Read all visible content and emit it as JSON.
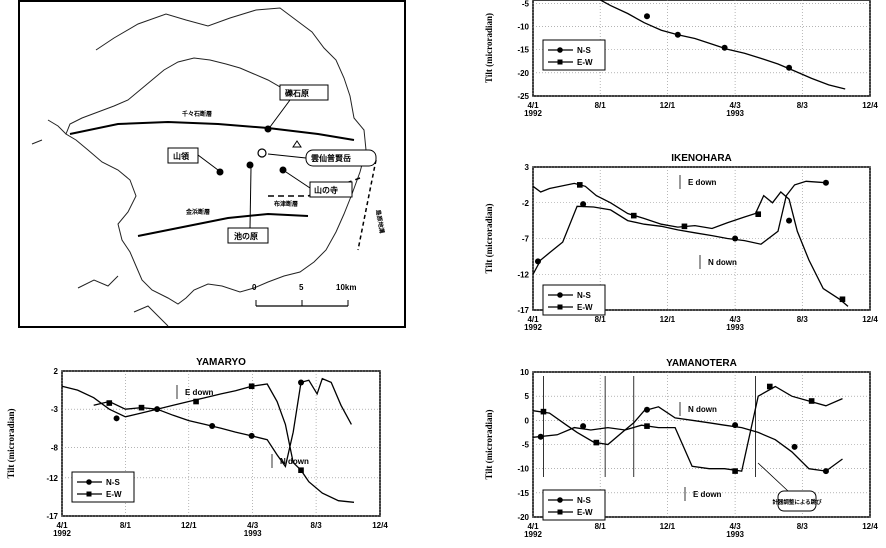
{
  "map": {
    "labels": [
      "礫石原",
      "千々石断層",
      "山領",
      "雲仙普賢岳",
      "山の寺",
      "布津断層",
      "金浜断層",
      "池の原",
      "島原地溝"
    ],
    "scale": {
      "ticks": [
        "0",
        "5",
        "10km"
      ]
    }
  },
  "chart_data": [
    {
      "id": "top",
      "type": "line",
      "title": "",
      "ylabel": "Tilt (microradian)",
      "xlabel": "",
      "x_ticks": [
        "4/1\n1992",
        "8/1",
        "12/1",
        "4/3\n1993",
        "8/3",
        "12/4"
      ],
      "y_ticks": [
        "-5",
        "-10",
        "-15",
        "-20",
        "-25"
      ],
      "ylim": [
        -25,
        -3
      ],
      "legend": [
        "N-S",
        "E-W"
      ],
      "series": [
        {
          "name": "N-S",
          "values": [
            [
              "1992-07-20",
              -3.5
            ],
            [
              "1992-08-20",
              -5.5
            ],
            [
              "1992-09-20",
              -7.2
            ],
            [
              "1992-10-20",
              -9.2
            ],
            [
              "1992-11-20",
              -10.8
            ],
            [
              "1992-12-20",
              -11.8
            ],
            [
              "1993-01-20",
              -12.6
            ],
            [
              "1993-02-20",
              -13.8
            ],
            [
              "1993-03-20",
              -14.9
            ],
            [
              "1993-04-20",
              -15.8
            ],
            [
              "1993-05-20",
              -16.9
            ],
            [
              "1993-06-20",
              -18.1
            ],
            [
              "1993-07-20",
              -19.6
            ],
            [
              "1993-08-20",
              -21.2
            ],
            [
              "1993-09-20",
              -22.6
            ],
            [
              "1993-10-20",
              -23.5
            ]
          ],
          "markers": [
            [
              "1992-10-25",
              -7.8
            ],
            [
              "1992-12-20",
              -11.8
            ],
            [
              "1993-03-15",
              -14.6
            ],
            [
              "1993-07-10",
              -18.9
            ]
          ]
        }
      ]
    },
    {
      "id": "ikenohara",
      "type": "line",
      "title": "IKENOHARA",
      "ylabel": "Tilt (microradian)",
      "xlabel": "",
      "x_ticks": [
        "4/1\n1992",
        "8/1",
        "12/1",
        "4/3\n1993",
        "8/3",
        "12/4"
      ],
      "y_ticks": [
        "3",
        "-2",
        "-7",
        "-12",
        "-17"
      ],
      "ylim": [
        -17,
        3
      ],
      "legend": [
        "N-S",
        "E-W"
      ],
      "annotations": [
        "E down",
        "N down"
      ],
      "series": [
        {
          "name": "N-S",
          "values": [
            [
              "1992-04-01",
              -12.0
            ],
            [
              "1992-04-15",
              -10.0
            ],
            [
              "1992-05-01",
              -9.0
            ],
            [
              "1992-05-25",
              -7.5
            ],
            [
              "1992-06-20",
              -2.5
            ],
            [
              "1992-07-20",
              -2.6
            ],
            [
              "1992-08-20",
              -3.0
            ],
            [
              "1992-09-20",
              -4.5
            ],
            [
              "1992-10-20",
              -5.0
            ],
            [
              "1992-11-20",
              -5.3
            ],
            [
              "1992-12-20",
              -5.8
            ],
            [
              "1993-01-20",
              -6.2
            ],
            [
              "1993-02-20",
              -6.6
            ],
            [
              "1993-03-20",
              -7.0
            ],
            [
              "1993-04-20",
              -7.3
            ],
            [
              "1993-05-20",
              -7.8
            ],
            [
              "1993-06-20",
              -6.0
            ],
            [
              "1993-07-05",
              -1.0
            ],
            [
              "1993-07-20",
              0.5
            ],
            [
              "1993-08-10",
              1.0
            ],
            [
              "1993-09-15",
              0.8
            ]
          ],
          "markers": [
            [
              "1992-04-10",
              -10.2
            ],
            [
              "1992-07-01",
              -2.2
            ],
            [
              "1993-04-03",
              -7.0
            ],
            [
              "1993-07-10",
              -4.5
            ],
            [
              "1993-09-15",
              0.8
            ]
          ]
        },
        {
          "name": "E-W",
          "values": [
            [
              "1992-04-01",
              0.3
            ],
            [
              "1992-04-15",
              -0.5
            ],
            [
              "1992-05-01",
              0.0
            ],
            [
              "1992-06-15",
              0.7
            ],
            [
              "1992-07-05",
              0.3
            ],
            [
              "1992-07-25",
              -1.0
            ],
            [
              "1992-08-20",
              -2.0
            ],
            [
              "1992-09-20",
              -3.5
            ],
            [
              "1992-10-20",
              -4.2
            ],
            [
              "1992-11-20",
              -5.0
            ],
            [
              "1992-12-20",
              -5.4
            ],
            [
              "1993-01-20",
              -5.2
            ],
            [
              "1993-02-20",
              -5.6
            ],
            [
              "1993-03-20",
              -4.8
            ],
            [
              "1993-04-20",
              -4.0
            ],
            [
              "1993-05-10",
              -3.5
            ],
            [
              "1993-05-25",
              -1.0
            ],
            [
              "1993-06-10",
              -2.0
            ],
            [
              "1993-06-25",
              -0.5
            ],
            [
              "1993-07-10",
              -1.5
            ],
            [
              "1993-07-25",
              -6.0
            ],
            [
              "1993-08-15",
              -10.0
            ],
            [
              "1993-09-10",
              -14.0
            ],
            [
              "1993-10-10",
              -15.5
            ],
            [
              "1993-10-25",
              -16.5
            ]
          ],
          "markers": [
            [
              "1992-06-25",
              0.5
            ],
            [
              "1992-10-01",
              -3.8
            ],
            [
              "1993-01-01",
              -5.3
            ],
            [
              "1993-05-15",
              -3.6
            ],
            [
              "1993-10-15",
              -15.5
            ]
          ]
        }
      ]
    },
    {
      "id": "yamaryo",
      "type": "line",
      "title": "YAMARYO",
      "ylabel": "Tilt (microradian)",
      "xlabel": "",
      "x_ticks": [
        "4/1\n1992",
        "8/1",
        "12/1",
        "4/3\n1993",
        "8/3",
        "12/4"
      ],
      "y_ticks": [
        "2",
        "-3",
        "-8",
        "-12",
        "-17"
      ],
      "ylim": [
        -17,
        2
      ],
      "legend": [
        "N-S",
        "E-W"
      ],
      "annotations": [
        "E down",
        "N down"
      ],
      "series": [
        {
          "name": "N-S",
          "values": [
            [
              "1992-04-01",
              0.0
            ],
            [
              "1992-05-01",
              -0.5
            ],
            [
              "1992-06-01",
              -1.5
            ],
            [
              "1992-07-01",
              -3.0
            ],
            [
              "1992-08-01",
              -4.0
            ],
            [
              "1992-09-01",
              -3.5
            ],
            [
              "1992-10-01",
              -3.0
            ],
            [
              "1992-11-01",
              -3.8
            ],
            [
              "1992-12-01",
              -4.5
            ],
            [
              "1993-01-01",
              -5.0
            ],
            [
              "1993-02-01",
              -5.5
            ],
            [
              "1993-03-01",
              -6.0
            ],
            [
              "1993-04-01",
              -6.5
            ],
            [
              "1993-05-01",
              -7.0
            ],
            [
              "1993-05-20",
              -9.0
            ],
            [
              "1993-06-05",
              -10.5
            ],
            [
              "1993-06-20",
              -6.0
            ],
            [
              "1993-07-05",
              0.5
            ],
            [
              "1993-07-20",
              0.8
            ],
            [
              "1993-08-05",
              -1.0
            ],
            [
              "1993-08-15",
              1.0
            ],
            [
              "1993-09-01",
              0.5
            ],
            [
              "1993-09-20",
              -2.5
            ],
            [
              "1993-10-10",
              -5.0
            ]
          ],
          "markers": [
            [
              "1992-07-15",
              -4.2
            ],
            [
              "1992-10-01",
              -3.0
            ],
            [
              "1993-01-15",
              -5.2
            ],
            [
              "1993-04-01",
              -6.5
            ],
            [
              "1993-07-05",
              0.5
            ]
          ]
        },
        {
          "name": "E-W",
          "values": [
            [
              "1992-06-01",
              -2.5
            ],
            [
              "1992-07-01",
              -2.0
            ],
            [
              "1992-08-01",
              -3.0
            ],
            [
              "1992-09-01",
              -2.8
            ],
            [
              "1992-10-01",
              -3.0
            ],
            [
              "1992-11-01",
              -2.5
            ],
            [
              "1992-12-01",
              -2.0
            ],
            [
              "1993-01-01",
              -1.5
            ],
            [
              "1993-02-01",
              -1.0
            ],
            [
              "1993-03-01",
              -0.6
            ],
            [
              "1993-04-01",
              0.0
            ],
            [
              "1993-05-01",
              0.3
            ],
            [
              "1993-05-20",
              -2.0
            ],
            [
              "1993-06-05",
              -5.0
            ],
            [
              "1993-06-20",
              -10.0
            ],
            [
              "1993-07-05",
              -11.0
            ],
            [
              "1993-07-20",
              -12.5
            ],
            [
              "1993-08-15",
              -14.0
            ],
            [
              "1993-09-15",
              -15.0
            ],
            [
              "1993-10-15",
              -15.2
            ]
          ],
          "markers": [
            [
              "1992-07-01",
              -2.2
            ],
            [
              "1992-09-01",
              -2.8
            ],
            [
              "1992-12-15",
              -2.0
            ],
            [
              "1993-04-01",
              0.0
            ],
            [
              "1993-07-05",
              -11.0
            ]
          ]
        }
      ]
    },
    {
      "id": "yamanotera",
      "type": "line",
      "title": "YAMANOTERA",
      "ylabel": "Tilt (microradian)",
      "xlabel": "",
      "x_ticks": [
        "4/1\n1992",
        "8/1",
        "12/1",
        "4/3\n1993",
        "8/3",
        "12/4"
      ],
      "y_ticks": [
        "10",
        "5",
        "0",
        "-5",
        "-10",
        "-15",
        "-20"
      ],
      "ylim": [
        -20,
        10
      ],
      "legend": [
        "N-S",
        "E-W"
      ],
      "annotations": [
        "N down",
        "E down",
        "計器調整による跳び"
      ],
      "series": [
        {
          "name": "N-S",
          "values": [
            [
              "1992-04-01",
              -3.5
            ],
            [
              "1992-05-15",
              -3.0
            ],
            [
              "1992-06-15",
              -1.5
            ],
            [
              "1992-07-15",
              -2.0
            ],
            [
              "1992-08-15",
              -1.5
            ],
            [
              "1992-09-15",
              -2.0
            ],
            [
              "1992-10-01",
              -0.5
            ],
            [
              "1992-10-20",
              2.0
            ],
            [
              "1992-11-15",
              2.8
            ],
            [
              "1992-12-15",
              0.5
            ],
            [
              "1993-01-15",
              0.0
            ],
            [
              "1993-02-15",
              -0.5
            ],
            [
              "1993-03-15",
              -1.0
            ],
            [
              "1993-04-15",
              -1.5
            ],
            [
              "1993-05-15",
              -2.5
            ],
            [
              "1993-06-15",
              -4.0
            ],
            [
              "1993-07-15",
              -6.5
            ],
            [
              "1993-08-15",
              -10.0
            ],
            [
              "1993-09-15",
              -10.5
            ],
            [
              "1993-10-15",
              -8.0
            ]
          ],
          "markers": [
            [
              "1992-04-15",
              -3.4
            ],
            [
              "1992-07-01",
              -1.2
            ],
            [
              "1992-10-25",
              2.2
            ],
            [
              "1993-04-03",
              -1.0
            ],
            [
              "1993-07-20",
              -5.5
            ],
            [
              "1993-09-15",
              -10.5
            ]
          ]
        },
        {
          "name": "E-W",
          "values": [
            [
              "1992-04-01",
              2.0
            ],
            [
              "1992-05-01",
              1.5
            ],
            [
              "1992-06-01",
              -1.0
            ],
            [
              "1992-06-20",
              -2.5
            ],
            [
              "1992-07-20",
              -4.5
            ],
            [
              "1992-08-15",
              -5.0
            ],
            [
              "1992-09-15",
              -2.0
            ],
            [
              "1992-10-15",
              -1.0
            ],
            [
              "1992-11-15",
              -1.5
            ],
            [
              "1992-12-15",
              -1.5
            ],
            [
              "1993-01-15",
              -9.5
            ],
            [
              "1993-02-15",
              -10.0
            ],
            [
              "1993-03-15",
              -10.0
            ],
            [
              "1993-04-15",
              -10.5
            ],
            [
              "1993-05-15",
              5.0
            ],
            [
              "1993-06-15",
              7.0
            ],
            [
              "1993-07-15",
              5.0
            ],
            [
              "1993-08-15",
              4.0
            ],
            [
              "1993-09-15",
              3.0
            ],
            [
              "1993-10-15",
              4.5
            ]
          ],
          "markers": [
            [
              "1992-04-20",
              1.8
            ],
            [
              "1992-07-25",
              -4.6
            ],
            [
              "1992-10-25",
              -1.2
            ],
            [
              "1993-04-03",
              -10.5
            ],
            [
              "1993-06-05",
              7.0
            ],
            [
              "1993-08-20",
              4.0
            ]
          ]
        }
      ]
    }
  ]
}
